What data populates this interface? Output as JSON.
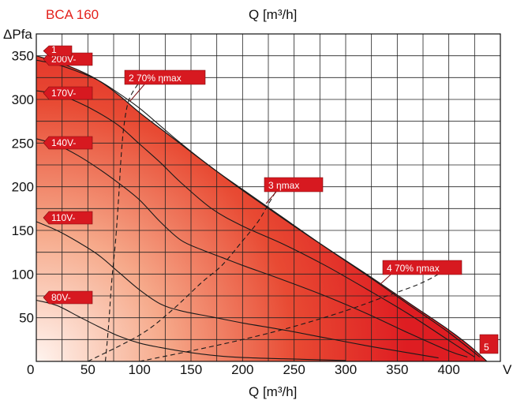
{
  "chart_data": {
    "type": "line",
    "title": "BCA 160",
    "xlabel_top": "Q [m³/h]",
    "xlabel": "Q [m³/h]",
    "ylabel": "ΔPfa",
    "x_end_label": "V",
    "origin_label": "0",
    "xlim": [
      0,
      450
    ],
    "ylim": [
      0,
      375
    ],
    "x_ticks": [
      50,
      100,
      150,
      200,
      250,
      300,
      350,
      400
    ],
    "y_ticks": [
      50,
      100,
      150,
      200,
      250,
      300,
      350
    ],
    "grid": true,
    "envelope": {
      "name": "max curve",
      "x": [
        0,
        20,
        40,
        60,
        80,
        100,
        130,
        160,
        200,
        240,
        280,
        320,
        360,
        400,
        420,
        437
      ],
      "y": [
        350,
        343,
        334,
        322,
        305,
        285,
        258,
        231,
        196,
        163,
        131,
        100,
        68,
        36,
        18,
        0
      ]
    },
    "series": [
      {
        "name": "200V-",
        "x": [
          0,
          20,
          40,
          60,
          80,
          100,
          120,
          140,
          170,
          200,
          240,
          280,
          320,
          360,
          400,
          430
        ],
        "y": [
          345,
          340,
          332,
          322,
          307,
          290,
          270,
          250,
          222,
          197,
          164,
          131,
          99,
          66,
          33,
          5
        ]
      },
      {
        "name": "170V-",
        "x": [
          0,
          20,
          40,
          60,
          80,
          100,
          120,
          140,
          170,
          200,
          240,
          280,
          320,
          360,
          400,
          425
        ],
        "y": [
          310,
          306,
          297,
          285,
          270,
          249,
          228,
          205,
          175,
          155,
          134,
          110,
          83,
          55,
          24,
          5
        ]
      },
      {
        "name": "140V-",
        "x": [
          0,
          20,
          40,
          60,
          80,
          100,
          120,
          140,
          160,
          180,
          200,
          240,
          280,
          320,
          360,
          400,
          418
        ],
        "y": [
          255,
          248,
          236,
          221,
          204,
          185,
          160,
          139,
          128,
          119,
          110,
          93,
          75,
          55,
          33,
          12,
          5
        ]
      },
      {
        "name": "110V-",
        "x": [
          0,
          20,
          40,
          60,
          80,
          100,
          120,
          140,
          170,
          200,
          240,
          280,
          320,
          360,
          390
        ],
        "y": [
          160,
          150,
          137,
          122,
          102,
          82,
          66,
          58,
          51,
          44,
          36,
          27,
          18,
          10,
          4
        ]
      },
      {
        "name": "80V-",
        "x": [
          0,
          20,
          40,
          60,
          80,
          100,
          120,
          150,
          180,
          210,
          240,
          270,
          300
        ],
        "y": [
          70,
          64,
          52,
          40,
          29,
          21,
          16,
          10,
          6,
          4,
          3,
          2,
          1
        ]
      }
    ],
    "efficiency_lines": [
      {
        "name": "70% ηmax",
        "x": [
          67,
          70,
          73,
          77,
          80,
          82,
          85,
          90,
          100
        ],
        "y": [
          0,
          40,
          90,
          140,
          190,
          230,
          270,
          300,
          320
        ]
      },
      {
        "name": "ηmax",
        "x": [
          50,
          100,
          130,
          160,
          180,
          200,
          215,
          225,
          240
        ],
        "y": [
          0,
          30,
          57,
          90,
          110,
          138,
          160,
          180,
          210
        ]
      },
      {
        "name": "70% ηmax",
        "x": [
          100,
          150,
          200,
          250,
          300,
          340,
          370,
          390,
          400
        ],
        "y": [
          0,
          12,
          25,
          40,
          58,
          75,
          88,
          100,
          110
        ]
      }
    ],
    "markers": [
      {
        "num": "1",
        "label": ""
      },
      {
        "num": "2",
        "label": "70% ηmax"
      },
      {
        "num": "3",
        "label": "ηmax"
      },
      {
        "num": "4",
        "label": "70% ηmax"
      },
      {
        "num": "5",
        "label": ""
      }
    ],
    "colors": {
      "fill_light": "#fbe3d8",
      "fill_dark": "#e01f26",
      "title": "#e3201b",
      "tag": "#d71920",
      "grid": "#222222"
    }
  }
}
